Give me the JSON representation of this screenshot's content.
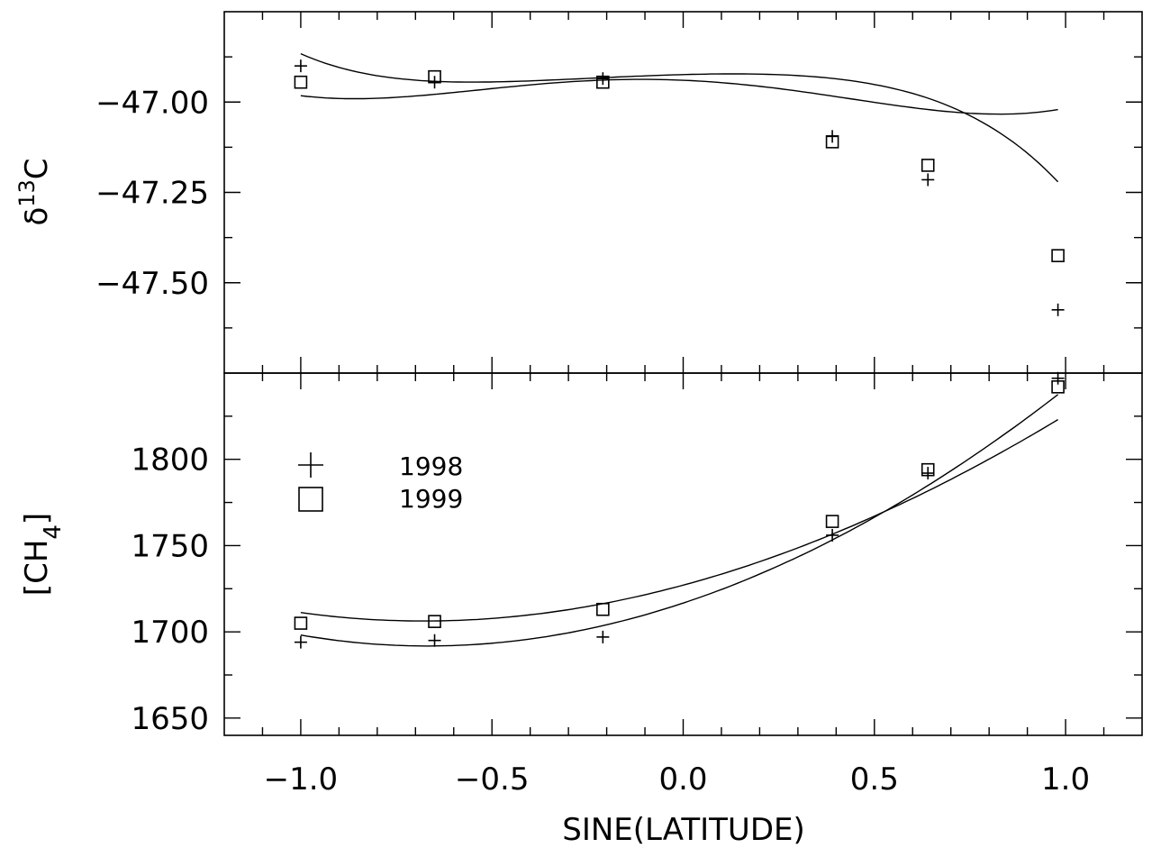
{
  "chart_data": {
    "type": "scatter",
    "xlabel": "SINE(LATITUDE)",
    "xlim": [
      -1.2,
      1.2
    ],
    "x_ticks": [
      -1.0,
      -0.5,
      0.0,
      0.5,
      1.0
    ],
    "x_tick_labels": [
      "−1.0",
      "−0.5",
      "0.0",
      "0.5",
      "1.0"
    ],
    "x_minor_step": 0.1,
    "panels": [
      {
        "id": "top",
        "ylabel_main": "δ",
        "ylabel_sup": "13",
        "ylabel_rest": "C",
        "ylim": [
          -47.75,
          -46.75
        ],
        "y_ticks": [
          -47.0,
          -47.25,
          -47.5
        ],
        "y_tick_labels": [
          "−47.00",
          "−47.25",
          "−47.50"
        ],
        "y_minor_step": 0.125,
        "series": [
          {
            "name": "1998",
            "marker": "plus",
            "x": [
              -1.0,
              -0.65,
              -0.21,
              0.39,
              0.64,
              0.98
            ],
            "y": [
              -46.9,
              -46.945,
              -46.935,
              -47.095,
              -47.215,
              -47.575
            ],
            "fit": [
              -46.924,
              0.0283,
              -0.0835,
              -0.116,
              -0.0475,
              -0.101
            ]
          },
          {
            "name": "1999",
            "marker": "square",
            "x": [
              -1.0,
              -0.65,
              -0.21,
              0.39,
              0.64,
              0.98
            ],
            "y": [
              -46.945,
              -46.93,
              -46.945,
              -47.11,
              -47.175,
              -47.425
            ],
            "fit": [
              -46.9397,
              -0.0449,
              -0.2045,
              0.0276,
              0.1446
            ]
          }
        ]
      },
      {
        "id": "bottom",
        "ylabel_pre": "[CH",
        "ylabel_sub": "4",
        "ylabel_post": "]",
        "ylim": [
          1640,
          1850
        ],
        "y_ticks": [
          1650,
          1700,
          1750,
          1800
        ],
        "y_tick_labels": [
          "1650",
          "1700",
          "1750",
          "1800"
        ],
        "y_minor_step": 25,
        "series": [
          {
            "name": "1998",
            "marker": "plus",
            "x": [
              -1.0,
              -0.65,
              -0.21,
              0.39,
              0.64,
              0.98
            ],
            "y": [
              1694,
              1695,
              1697,
              1756,
              1792,
              1847
            ],
            "fit": [
              1716.67,
              73.52,
              52.91,
              -2.1
            ]
          },
          {
            "name": "1999",
            "marker": "square",
            "x": [
              -1.0,
              -0.65,
              -0.21,
              0.39,
              0.64,
              0.98
            ],
            "y": [
              1705,
              1706,
              1713,
              1764,
              1794,
              1842
            ],
            "fit": [
              1727.06,
              59.96,
              41.39,
              -2.7
            ]
          }
        ]
      }
    ],
    "legend": {
      "placement": "bottom panel, upper-left",
      "entries": [
        {
          "label": "1998",
          "marker": "plus"
        },
        {
          "label": "1999",
          "marker": "square"
        }
      ]
    }
  }
}
